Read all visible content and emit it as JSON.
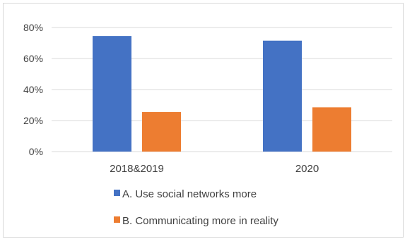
{
  "chart_data": {
    "type": "bar",
    "categories": [
      "2018&2019",
      "2020"
    ],
    "series": [
      {
        "name": "A. Use social networks more",
        "values": [
          74.5,
          71.5
        ],
        "color": "#4472C4"
      },
      {
        "name": "B. Communicating more in reality",
        "values": [
          25.5,
          28.5
        ],
        "color": "#ED7D31"
      }
    ],
    "title": "",
    "xlabel": "",
    "ylabel": "",
    "ylim": [
      0,
      80
    ],
    "yticks": [
      0,
      20,
      40,
      60,
      80
    ],
    "ytick_labels": [
      "0%",
      "20%",
      "40%",
      "60%",
      "80%"
    ],
    "grid": true,
    "legend_position": "bottom"
  }
}
